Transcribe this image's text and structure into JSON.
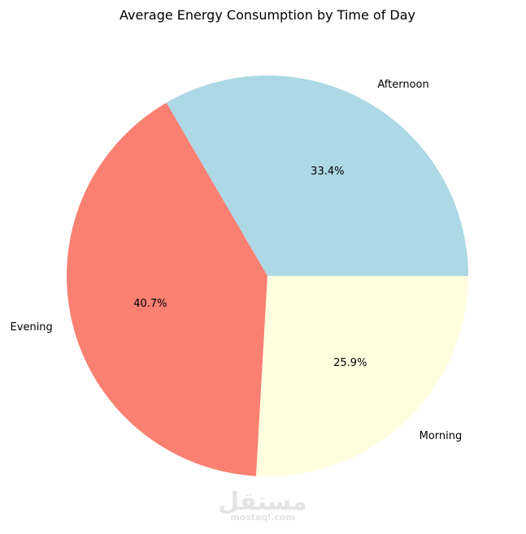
{
  "chart_data": {
    "type": "pie",
    "title": "Average Energy Consumption by Time of Day",
    "start_angle_deg": 0,
    "direction": "counterclockwise",
    "slices": [
      {
        "label": "Afternoon",
        "value": 33.4,
        "pct_label": "33.4%",
        "color": "#add8e6"
      },
      {
        "label": "Evening",
        "value": 40.7,
        "pct_label": "40.7%",
        "color": "#fa8072"
      },
      {
        "label": "Morning",
        "value": 25.9,
        "pct_label": "25.9%",
        "color": "#ffffe0"
      }
    ]
  },
  "watermark": {
    "arabic": "مستقل",
    "latin": "mostaql.com"
  }
}
